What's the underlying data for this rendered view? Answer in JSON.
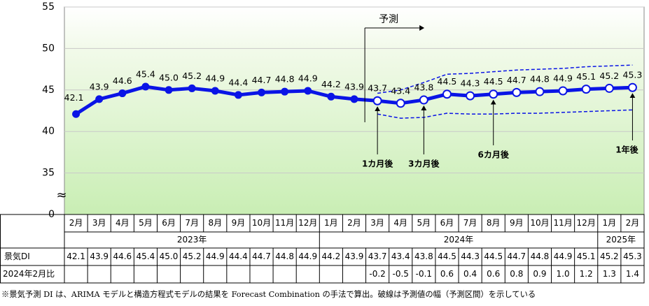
{
  "chart_data": {
    "type": "line",
    "color": "#0a14e6",
    "band_color": "#0a14e6",
    "categories": [
      "2月",
      "3月",
      "4月",
      "5月",
      "6月",
      "7月",
      "8月",
      "9月",
      "10月",
      "11月",
      "12月",
      "1月",
      "2月",
      "3月",
      "4月",
      "5月",
      "6月",
      "7月",
      "8月",
      "9月",
      "10月",
      "11月",
      "12月",
      "1月",
      "2月"
    ],
    "values": [
      42.1,
      43.9,
      44.6,
      45.4,
      45.0,
      45.2,
      44.9,
      44.4,
      44.7,
      44.8,
      44.9,
      44.2,
      43.9,
      43.7,
      43.4,
      43.8,
      44.5,
      44.3,
      44.5,
      44.7,
      44.8,
      44.9,
      45.1,
      45.2,
      45.3
    ],
    "value_labels": [
      "42.1",
      "43.9",
      "44.6",
      "45.4",
      "45.0",
      "45.2",
      "44.9",
      "44.4",
      "44.7",
      "44.8",
      "44.9",
      "44.2",
      "43.9",
      "43.7",
      "43.4",
      "43.8",
      "44.5",
      "44.3",
      "44.5",
      "44.7",
      "44.8",
      "44.9",
      "45.1",
      "45.2",
      "45.3"
    ],
    "forecast_start": 13,
    "upper": [
      null,
      null,
      null,
      null,
      null,
      null,
      null,
      null,
      null,
      null,
      null,
      null,
      null,
      44.6,
      45.0,
      45.9,
      46.9,
      47.0,
      47.2,
      47.4,
      47.5,
      47.6,
      47.8,
      47.9,
      48.0
    ],
    "lower": [
      null,
      null,
      null,
      null,
      null,
      null,
      null,
      null,
      null,
      null,
      null,
      null,
      null,
      42.1,
      41.6,
      41.7,
      42.2,
      42.1,
      42.1,
      42.2,
      42.2,
      42.3,
      42.4,
      42.5,
      42.6
    ],
    "ylim": [
      30,
      55
    ],
    "yticks": [
      35,
      40,
      45,
      50,
      55
    ],
    "axis_break_label": "0",
    "grid": true,
    "forecast_label": "予測",
    "annotations": [
      {
        "text": "1カ月後",
        "index": 13
      },
      {
        "text": "3カ月後",
        "index": 15
      },
      {
        "text": "6カ月後",
        "index": 18
      },
      {
        "text": "1年後",
        "index": 24
      }
    ],
    "years": [
      {
        "label": "2023年",
        "span": 11
      },
      {
        "label": "2024年",
        "span": 12
      },
      {
        "label": "2025年",
        "span": 2
      }
    ],
    "row_labels": [
      "景気DI",
      "2024年2月比"
    ],
    "diff": [
      null,
      null,
      null,
      null,
      null,
      null,
      null,
      null,
      null,
      null,
      null,
      null,
      null,
      "-0.2",
      "-0.5",
      "-0.1",
      "0.6",
      "0.4",
      "0.6",
      "0.8",
      "0.9",
      "1.0",
      "1.2",
      "1.3",
      "1.4"
    ],
    "footnote": "※景気予測 DI は、ARIMA モデルと構造方程式モデルの結果を Forecast Combination の手法で算出。破線は予測値の幅（予測区間）を示している"
  }
}
